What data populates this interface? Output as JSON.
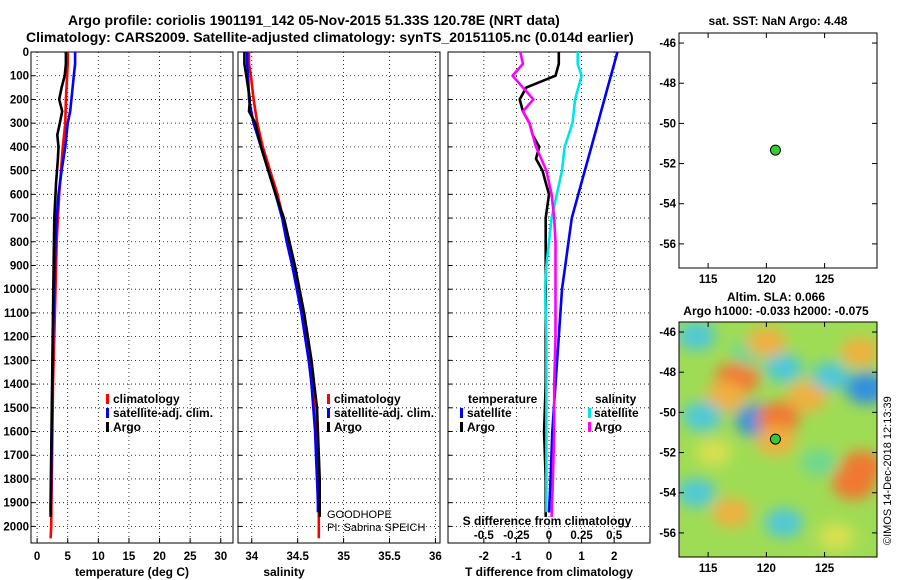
{
  "figure": {
    "title_line1": "Argo profile: coriolis 1901191_142 05-Nov-2015 51.33S 120.78E (NRT data)",
    "title_line2": "Climatology: CARS2009. Satellite-adjusted climatology: synTS_20151105.nc (0.014d earlier)",
    "side_stamp": "©IMOS 14-Dec-2018 12:13:39",
    "colors": {
      "climatology": "#ff0000",
      "satellite": "#0000ff",
      "argo": "#000000",
      "cyan": "#00e5e5",
      "magenta": "#ff00ff"
    }
  },
  "depth_ticks": [
    "0",
    "100",
    "200",
    "300",
    "400",
    "500",
    "600",
    "700",
    "800",
    "900",
    "1000",
    "1100",
    "1200",
    "1300",
    "1400",
    "1500",
    "1600",
    "1700",
    "1800",
    "1900",
    "2000"
  ],
  "chart_data": [
    {
      "type": "line",
      "name": "temperature-profile",
      "xlabel": "temperature (deg C)",
      "xlim": [
        -1,
        32
      ],
      "ylim": [
        0,
        2070
      ],
      "xticks": [
        "0",
        "5",
        "10",
        "15",
        "20",
        "25",
        "30"
      ],
      "legend": [
        "climatology",
        "satellite-adj. clim.",
        "Argo"
      ],
      "series": [
        {
          "name": "climatology",
          "color": "#ff0000",
          "points": [
            [
              5.0,
              0
            ],
            [
              5.0,
              50
            ],
            [
              4.9,
              100
            ],
            [
              4.7,
              200
            ],
            [
              4.6,
              300
            ],
            [
              4.2,
              400
            ],
            [
              3.9,
              500
            ],
            [
              3.6,
              600
            ],
            [
              3.4,
              700
            ],
            [
              3.2,
              800
            ],
            [
              3.0,
              1000
            ],
            [
              2.8,
              1200
            ],
            [
              2.6,
              1400
            ],
            [
              2.5,
              1600
            ],
            [
              2.4,
              1800
            ],
            [
              2.3,
              2000
            ],
            [
              2.2,
              2050
            ]
          ]
        },
        {
          "name": "satellite-adj. clim.",
          "color": "#0000ff",
          "points": [
            [
              6.2,
              0
            ],
            [
              6.2,
              50
            ],
            [
              6.0,
              100
            ],
            [
              5.8,
              150
            ],
            [
              5.4,
              250
            ],
            [
              5.0,
              300
            ],
            [
              4.6,
              400
            ],
            [
              4.0,
              500
            ],
            [
              3.5,
              600
            ],
            [
              3.2,
              700
            ],
            [
              3.0,
              800
            ],
            [
              2.8,
              1000
            ],
            [
              2.6,
              1200
            ],
            [
              2.5,
              1400
            ],
            [
              2.4,
              1600
            ],
            [
              2.3,
              1800
            ],
            [
              2.2,
              1940
            ]
          ]
        },
        {
          "name": "Argo",
          "color": "#000000",
          "points": [
            [
              4.7,
              0
            ],
            [
              4.7,
              50
            ],
            [
              4.5,
              100
            ],
            [
              4.0,
              150
            ],
            [
              3.6,
              200
            ],
            [
              4.1,
              250
            ],
            [
              3.7,
              300
            ],
            [
              3.3,
              350
            ],
            [
              3.5,
              400
            ],
            [
              3.4,
              450
            ],
            [
              3.1,
              550
            ],
            [
              2.8,
              700
            ],
            [
              2.7,
              900
            ],
            [
              2.6,
              1100
            ],
            [
              2.5,
              1300
            ],
            [
              2.4,
              1500
            ],
            [
              2.3,
              1700
            ],
            [
              2.2,
              1900
            ],
            [
              2.2,
              1960
            ]
          ]
        }
      ]
    },
    {
      "type": "line",
      "name": "salinity-profile",
      "xlabel": "salinity",
      "xlim": [
        33.85,
        36.05
      ],
      "ylim": [
        0,
        2070
      ],
      "xticks": [
        "34",
        "34.5",
        "35",
        "35.5",
        "36"
      ],
      "legend": [
        "climatology",
        "satellite-adj. clim.",
        "Argo"
      ],
      "annotation": [
        "GOODHOPE",
        "PI: Sabrina SPEICH"
      ],
      "series": [
        {
          "name": "climatology",
          "color": "#ff0000",
          "points": [
            [
              33.97,
              0
            ],
            [
              33.97,
              50
            ],
            [
              33.99,
              100
            ],
            [
              34.02,
              200
            ],
            [
              34.06,
              300
            ],
            [
              34.12,
              400
            ],
            [
              34.2,
              500
            ],
            [
              34.28,
              600
            ],
            [
              34.34,
              700
            ],
            [
              34.39,
              800
            ],
            [
              34.45,
              900
            ],
            [
              34.5,
              1000
            ],
            [
              34.55,
              1100
            ],
            [
              34.59,
              1200
            ],
            [
              34.63,
              1300
            ],
            [
              34.66,
              1400
            ],
            [
              34.68,
              1500
            ],
            [
              34.7,
              1600
            ],
            [
              34.71,
              1700
            ],
            [
              34.72,
              1800
            ],
            [
              34.73,
              1900
            ],
            [
              34.73,
              2000
            ],
            [
              34.73,
              2050
            ]
          ]
        },
        {
          "name": "satellite-adj. clim.",
          "color": "#0000ff",
          "points": [
            [
              33.95,
              0
            ],
            [
              33.95,
              50
            ],
            [
              33.96,
              100
            ],
            [
              33.97,
              200
            ],
            [
              34.02,
              300
            ],
            [
              34.1,
              400
            ],
            [
              34.18,
              500
            ],
            [
              34.26,
              600
            ],
            [
              34.33,
              700
            ],
            [
              34.38,
              800
            ],
            [
              34.44,
              900
            ],
            [
              34.49,
              1000
            ],
            [
              34.54,
              1100
            ],
            [
              34.58,
              1200
            ],
            [
              34.62,
              1300
            ],
            [
              34.65,
              1400
            ],
            [
              34.67,
              1500
            ],
            [
              34.69,
              1600
            ],
            [
              34.7,
              1700
            ],
            [
              34.71,
              1800
            ],
            [
              34.72,
              1900
            ],
            [
              34.72,
              1940
            ]
          ]
        },
        {
          "name": "Argo",
          "color": "#000000",
          "points": [
            [
              33.92,
              0
            ],
            [
              33.92,
              50
            ],
            [
              33.94,
              100
            ],
            [
              33.98,
              200
            ],
            [
              33.97,
              250
            ],
            [
              34.04,
              300
            ],
            [
              34.1,
              400
            ],
            [
              34.18,
              500
            ],
            [
              34.26,
              600
            ],
            [
              34.35,
              700
            ],
            [
              34.41,
              800
            ],
            [
              34.47,
              900
            ],
            [
              34.52,
              1000
            ],
            [
              34.57,
              1100
            ],
            [
              34.61,
              1200
            ],
            [
              34.65,
              1300
            ],
            [
              34.68,
              1400
            ],
            [
              34.71,
              1500
            ],
            [
              34.72,
              1600
            ],
            [
              34.73,
              1700
            ],
            [
              34.74,
              1800
            ],
            [
              34.74,
              1900
            ],
            [
              34.74,
              1960
            ]
          ]
        }
      ]
    },
    {
      "type": "line",
      "name": "difference-profile",
      "xlabel": "T difference from climatology",
      "xlabel_top": "S difference from climatology",
      "xlim": [
        -3.1,
        3.1
      ],
      "ylim": [
        0,
        2070
      ],
      "xticks_T": [
        "-2",
        "-1",
        "0",
        "1",
        "2"
      ],
      "xticks_S": [
        "-0.5",
        "-0.25",
        "0",
        "0.25",
        "0.5"
      ],
      "legend_temperature": {
        "title": "temperature",
        "items": [
          "satellite",
          "Argo"
        ]
      },
      "legend_salinity": {
        "title": "salinity",
        "items": [
          "satellite",
          "Argo"
        ]
      },
      "series": [
        {
          "name": "temperature satellite",
          "color": "#0000ff",
          "points": [
            [
              2.1,
              0
            ],
            [
              2.0,
              50
            ],
            [
              1.9,
              100
            ],
            [
              1.8,
              150
            ],
            [
              1.7,
              200
            ],
            [
              1.6,
              250
            ],
            [
              1.5,
              300
            ],
            [
              1.3,
              400
            ],
            [
              1.1,
              500
            ],
            [
              0.9,
              600
            ],
            [
              0.7,
              700
            ],
            [
              0.6,
              800
            ],
            [
              0.5,
              900
            ],
            [
              0.4,
              1000
            ],
            [
              0.3,
              1200
            ],
            [
              0.2,
              1400
            ],
            [
              0.1,
              1600
            ],
            [
              0.05,
              1800
            ],
            [
              0.0,
              1940
            ]
          ]
        },
        {
          "name": "temperature Argo",
          "color": "#000000",
          "points": [
            [
              0.3,
              0
            ],
            [
              0.3,
              50
            ],
            [
              0.2,
              100
            ],
            [
              -0.7,
              150
            ],
            [
              -0.9,
              200
            ],
            [
              -0.8,
              250
            ],
            [
              -0.6,
              300
            ],
            [
              -0.5,
              350
            ],
            [
              -0.3,
              400
            ],
            [
              -0.4,
              450
            ],
            [
              -0.2,
              500
            ],
            [
              -0.1,
              550
            ],
            [
              0.0,
              600
            ],
            [
              -0.1,
              700
            ],
            [
              -0.1,
              800
            ],
            [
              -0.1,
              1000
            ],
            [
              -0.1,
              1200
            ],
            [
              -0.1,
              1400
            ],
            [
              -0.15,
              1600
            ],
            [
              -0.1,
              1800
            ],
            [
              -0.1,
              1960
            ]
          ]
        },
        {
          "name": "salinity satellite",
          "color": "#00e5e5",
          "points": [
            [
              0.22,
              0
            ],
            [
              0.22,
              50
            ],
            [
              0.25,
              100
            ],
            [
              0.2,
              200
            ],
            [
              0.18,
              300
            ],
            [
              0.12,
              400
            ],
            [
              0.1,
              500
            ],
            [
              0.06,
              600
            ],
            [
              0.02,
              700
            ],
            [
              0.0,
              800
            ],
            [
              -0.02,
              900
            ],
            [
              -0.03,
              1000
            ],
            [
              -0.02,
              1200
            ],
            [
              -0.02,
              1400
            ],
            [
              -0.02,
              1600
            ],
            [
              -0.02,
              1800
            ],
            [
              -0.02,
              1940
            ]
          ]
        },
        {
          "name": "salinity Argo",
          "color": "#ff00ff",
          "points": [
            [
              -0.22,
              0
            ],
            [
              -0.2,
              50
            ],
            [
              -0.28,
              100
            ],
            [
              -0.12,
              200
            ],
            [
              -0.2,
              250
            ],
            [
              -0.15,
              300
            ],
            [
              -0.1,
              400
            ],
            [
              -0.02,
              500
            ],
            [
              0.02,
              600
            ],
            [
              0.04,
              700
            ],
            [
              0.05,
              800
            ],
            [
              0.05,
              900
            ],
            [
              0.05,
              1000
            ],
            [
              0.05,
              1200
            ],
            [
              0.04,
              1400
            ],
            [
              0.04,
              1600
            ],
            [
              0.03,
              1800
            ],
            [
              0.02,
              1960
            ]
          ]
        }
      ]
    },
    {
      "type": "scatter",
      "name": "sst-map",
      "title": "sat. SST: NaN Argo: 4.48",
      "xlim": [
        112.5,
        129.5
      ],
      "ylim": [
        -57.2,
        -45.5
      ],
      "xticks": [
        "115",
        "120",
        "125"
      ],
      "yticks": [
        "-46",
        "-48",
        "-50",
        "-52",
        "-54",
        "-56"
      ],
      "points": [
        {
          "lon": 120.78,
          "lat": -51.33,
          "label": "Argo float"
        }
      ]
    },
    {
      "type": "heatmap",
      "name": "sla-map",
      "title_line1": "Altim. SLA: 0.066",
      "title_line2": "Argo h1000: -0.033 h2000: -0.075",
      "xlim": [
        112.5,
        129.5
      ],
      "ylim": [
        -57.2,
        -45.5
      ],
      "xticks": [
        "115",
        "120",
        "125"
      ],
      "yticks": [
        "-46",
        "-48",
        "-50",
        "-52",
        "-54",
        "-56"
      ],
      "points": [
        {
          "lon": 120.78,
          "lat": -51.33,
          "label": "Argo float"
        }
      ],
      "blobs": [
        {
          "lon": 117.5,
          "lat": -48.3,
          "level": 1.0
        },
        {
          "lon": 116.5,
          "lat": -49.2,
          "level": 0.7
        },
        {
          "lon": 118.5,
          "lat": -47.0,
          "level": -0.4
        },
        {
          "lon": 114.5,
          "lat": -50.2,
          "level": -0.6
        },
        {
          "lon": 114.0,
          "lat": -46.2,
          "level": -0.5
        },
        {
          "lon": 120.0,
          "lat": -46.5,
          "level": 0.6
        },
        {
          "lon": 121.5,
          "lat": -47.8,
          "level": -0.5
        },
        {
          "lon": 119.2,
          "lat": -50.4,
          "level": -0.9
        },
        {
          "lon": 121.0,
          "lat": -50.3,
          "level": 0.9
        },
        {
          "lon": 120.8,
          "lat": -51.4,
          "level": 0.6
        },
        {
          "lon": 123.5,
          "lat": -49.2,
          "level": 0.7
        },
        {
          "lon": 125.5,
          "lat": -48.2,
          "level": -0.5
        },
        {
          "lon": 128.0,
          "lat": -47.0,
          "level": 0.5
        },
        {
          "lon": 128.6,
          "lat": -48.8,
          "level": -0.8
        },
        {
          "lon": 128.2,
          "lat": -52.7,
          "level": 0.8
        },
        {
          "lon": 127.5,
          "lat": -53.5,
          "level": 1.0
        },
        {
          "lon": 124.5,
          "lat": -52.5,
          "level": -0.4
        },
        {
          "lon": 114.0,
          "lat": -54.0,
          "level": -0.5
        },
        {
          "lon": 117.0,
          "lat": -55.0,
          "level": 0.5
        },
        {
          "lon": 121.5,
          "lat": -55.5,
          "level": -0.5
        },
        {
          "lon": 126.0,
          "lat": -56.2,
          "level": 0.4
        },
        {
          "lon": 115.5,
          "lat": -52.0,
          "level": 0.3
        }
      ]
    }
  ]
}
